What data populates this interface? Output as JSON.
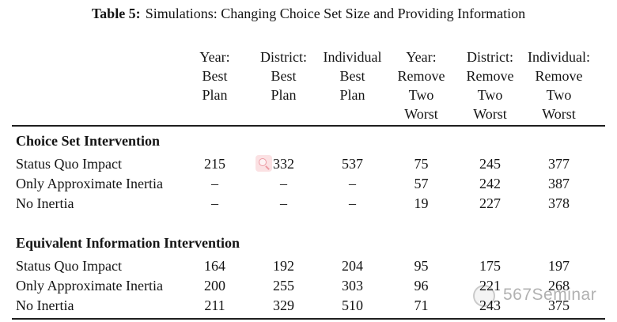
{
  "title": {
    "label": "Table 5:",
    "text": "Simulations: Changing Choice Set Size and Providing Information"
  },
  "table": {
    "columns": [
      "Year:\nBest\nPlan",
      "District:\nBest\nPlan",
      "Individual\nBest\nPlan",
      "Year:\nRemove\nTwo\nWorst",
      "District:\nRemove\nTwo\nWorst",
      "Individual:\nRemove\nTwo\nWorst"
    ],
    "sections": [
      {
        "header": "Choice Set Intervention",
        "rows": [
          {
            "label": "Status Quo Impact",
            "values": [
              "215",
              "332",
              "537",
              "75",
              "245",
              "377"
            ]
          },
          {
            "label": "Only Approximate Inertia",
            "values": [
              "–",
              "–",
              "–",
              "57",
              "242",
              "387"
            ]
          },
          {
            "label": "No Inertia",
            "values": [
              "–",
              "–",
              "–",
              "19",
              "227",
              "378"
            ]
          }
        ]
      },
      {
        "header": "Equivalent Information Intervention",
        "rows": [
          {
            "label": "Status Quo Impact",
            "values": [
              "164",
              "192",
              "204",
              "95",
              "175",
              "197"
            ]
          },
          {
            "label": "Only Approximate Inertia",
            "values": [
              "200",
              "255",
              "303",
              "96",
              "221",
              "268"
            ]
          },
          {
            "label": "No Inertia",
            "values": [
              "211",
              "329",
              "510",
              "71",
              "243",
              "375"
            ]
          }
        ]
      }
    ]
  },
  "overlays": {
    "magnifier_icon": "magnifier-icon",
    "watermark_text": "567Seminar"
  },
  "colors": {
    "rule": "#1e1e1e",
    "magnifier_bg": "#fbe1e3",
    "magnifier_glyph": "#ec9aa3",
    "watermark": "#9e9e9e"
  }
}
